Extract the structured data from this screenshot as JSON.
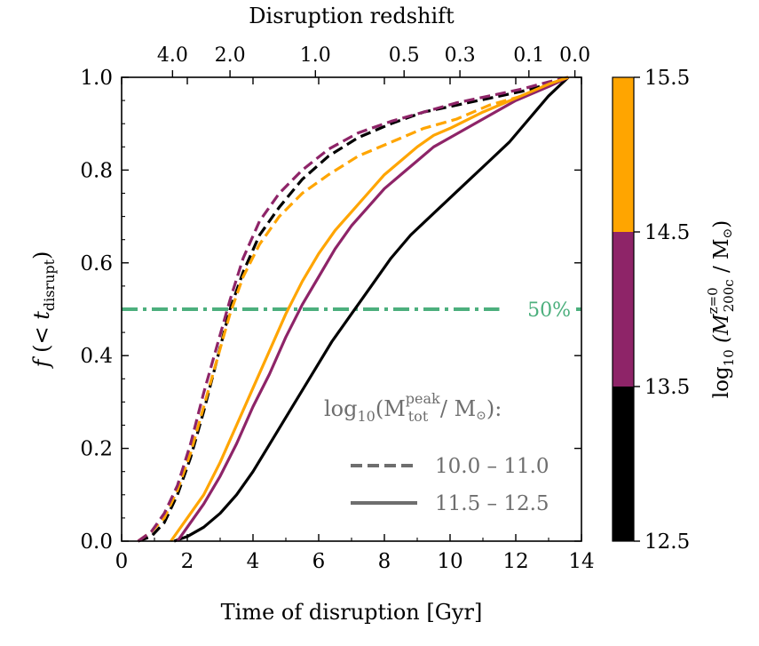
{
  "chart_data": {
    "type": "line",
    "title": "",
    "xlabel": "Time of disruption [Gyr]",
    "ylabel": "f(< t_disrupt)",
    "xlim": [
      0,
      14
    ],
    "ylim": [
      0,
      1
    ],
    "x_ticks": [
      0,
      2,
      4,
      6,
      8,
      10,
      12,
      14
    ],
    "y_ticks": [
      0.0,
      0.2,
      0.4,
      0.6,
      0.8,
      1.0
    ],
    "top_axis": {
      "label": "Disruption redshift",
      "ticks": [
        {
          "label": "4.0",
          "time": 1.55
        },
        {
          "label": "2.0",
          "time": 3.3
        },
        {
          "label": "1.0",
          "time": 5.9
        },
        {
          "label": "0.5",
          "time": 8.6
        },
        {
          "label": "0.3",
          "time": 10.3
        },
        {
          "label": "0.1",
          "time": 12.4
        },
        {
          "label": "0.0",
          "time": 13.8
        }
      ]
    },
    "reference_line": {
      "y": 0.5,
      "label": "50%",
      "color": "#4caf7d"
    },
    "legend": {
      "title_base": "log",
      "title_sub": "10",
      "title_open": "(M",
      "title_sup": "peak",
      "title_sub2": "tot",
      "title_close": " / M",
      "title_odot": "⊙",
      "title_end": "):",
      "entries": [
        {
          "label": "10.0 – 11.0",
          "style": "dashed"
        },
        {
          "label": "11.5 – 12.5",
          "style": "solid"
        }
      ],
      "placement": "lower-right"
    },
    "colorbar": {
      "label_base": "log",
      "label_sub": "10",
      "label_main": " (M",
      "label_sup": "z=0",
      "label_sub2": "200c",
      "label_rest": " / M",
      "label_odot": "⊙",
      "label_end": ")",
      "ticks": [
        "12.5",
        "13.5",
        "14.5",
        "15.5"
      ],
      "bins": [
        {
          "range": "12.5–13.5",
          "color": "#000000"
        },
        {
          "range": "13.5–14.5",
          "color": "#8e2468"
        },
        {
          "range": "14.5–15.5",
          "color": "#ffa500"
        }
      ]
    },
    "series": [
      {
        "name": "10.0-11.0 black",
        "style": "dashed",
        "color": "#000000",
        "x": [
          0.5,
          0.9,
          1.3,
          1.7,
          2.1,
          2.5,
          2.9,
          3.3,
          3.7,
          4.2,
          4.8,
          5.5,
          6.3,
          7.2,
          8.2,
          9.2,
          10.2,
          11.2,
          12.2,
          13.0,
          13.6
        ],
        "y": [
          0.0,
          0.01,
          0.04,
          0.1,
          0.18,
          0.28,
          0.39,
          0.5,
          0.58,
          0.66,
          0.72,
          0.78,
          0.83,
          0.87,
          0.9,
          0.925,
          0.94,
          0.955,
          0.97,
          0.985,
          1.0
        ]
      },
      {
        "name": "10.0-11.0 orange",
        "style": "dashed",
        "color": "#ffa500",
        "x": [
          0.5,
          0.9,
          1.3,
          1.7,
          2.1,
          2.5,
          2.9,
          3.3,
          3.7,
          4.2,
          4.8,
          5.5,
          6.3,
          7.2,
          8.2,
          9.2,
          10.2,
          11.2,
          12.2,
          13.0,
          13.6
        ],
        "y": [
          0.0,
          0.02,
          0.05,
          0.11,
          0.19,
          0.29,
          0.39,
          0.49,
          0.57,
          0.64,
          0.7,
          0.75,
          0.79,
          0.83,
          0.86,
          0.89,
          0.91,
          0.94,
          0.96,
          0.985,
          1.0
        ]
      },
      {
        "name": "10.0-11.0 purple",
        "style": "dashed",
        "color": "#8e2468",
        "x": [
          0.5,
          0.9,
          1.3,
          1.7,
          2.1,
          2.5,
          2.9,
          3.3,
          3.7,
          4.2,
          4.8,
          5.5,
          6.3,
          7.2,
          8.2,
          9.2,
          10.2,
          11.2,
          12.2,
          13.0,
          13.6
        ],
        "y": [
          0.0,
          0.02,
          0.06,
          0.12,
          0.21,
          0.32,
          0.42,
          0.52,
          0.61,
          0.69,
          0.75,
          0.8,
          0.845,
          0.88,
          0.905,
          0.925,
          0.945,
          0.96,
          0.975,
          0.99,
          1.0
        ]
      },
      {
        "name": "11.5-12.5 black",
        "style": "solid",
        "color": "#000000",
        "x": [
          1.6,
          2.0,
          2.5,
          3.0,
          3.5,
          4.0,
          4.6,
          5.2,
          5.8,
          6.4,
          7.0,
          7.6,
          8.2,
          8.8,
          9.4,
          10.0,
          10.6,
          11.2,
          11.8,
          12.4,
          13.0,
          13.6
        ],
        "y": [
          0.0,
          0.01,
          0.03,
          0.06,
          0.1,
          0.15,
          0.22,
          0.29,
          0.36,
          0.43,
          0.49,
          0.55,
          0.61,
          0.66,
          0.7,
          0.74,
          0.78,
          0.82,
          0.86,
          0.91,
          0.96,
          1.0
        ]
      },
      {
        "name": "11.5-12.5 purple",
        "style": "solid",
        "color": "#8e2468",
        "x": [
          1.7,
          2.0,
          2.5,
          3.0,
          3.5,
          4.0,
          4.5,
          5.0,
          5.5,
          6.0,
          6.5,
          7.0,
          7.5,
          8.0,
          8.5,
          9.0,
          9.5,
          10.0,
          11.0,
          12.0,
          13.0,
          13.6
        ],
        "y": [
          0.0,
          0.03,
          0.08,
          0.14,
          0.21,
          0.29,
          0.36,
          0.44,
          0.51,
          0.57,
          0.63,
          0.68,
          0.72,
          0.76,
          0.79,
          0.82,
          0.85,
          0.87,
          0.91,
          0.95,
          0.98,
          1.0
        ]
      },
      {
        "name": "11.5-12.5 orange",
        "style": "solid",
        "color": "#ffa500",
        "x": [
          1.5,
          2.0,
          2.5,
          3.0,
          3.5,
          4.0,
          4.5,
          5.0,
          5.5,
          6.0,
          6.5,
          7.0,
          7.5,
          8.0,
          8.5,
          9.0,
          9.5,
          10.0,
          11.0,
          12.0,
          13.0,
          13.6
        ],
        "y": [
          0.0,
          0.05,
          0.1,
          0.17,
          0.25,
          0.33,
          0.41,
          0.49,
          0.56,
          0.62,
          0.67,
          0.71,
          0.75,
          0.79,
          0.82,
          0.85,
          0.875,
          0.89,
          0.925,
          0.955,
          0.985,
          1.0
        ]
      }
    ]
  }
}
